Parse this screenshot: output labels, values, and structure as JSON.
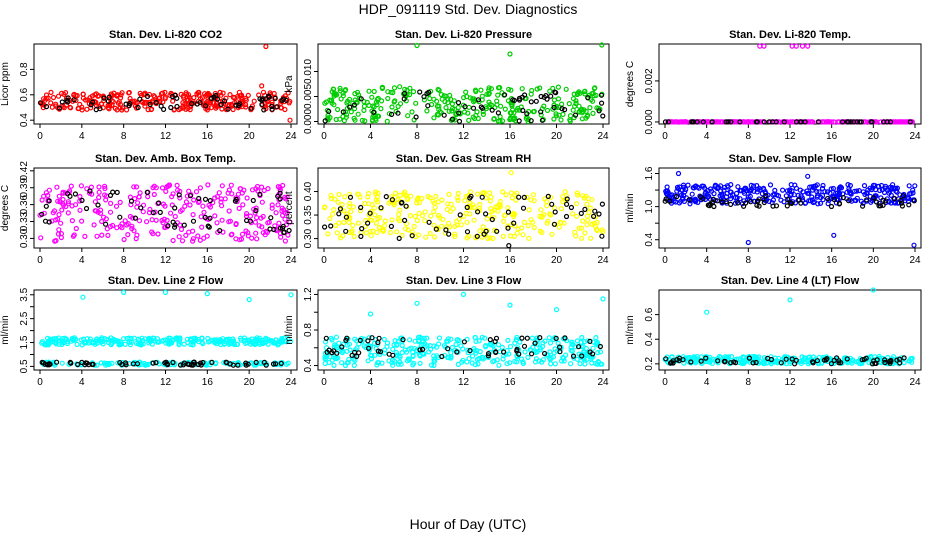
{
  "figure": {
    "title": "HDP_091119  Std. Dev. Diagnostics",
    "xlabel": "Hour of Day (UTC)"
  },
  "chart_data": [
    {
      "type": "scatter",
      "title": "Stan. Dev. Li-820 CO2",
      "ylabel": "Licor ppm",
      "xlim": [
        0,
        24
      ],
      "x_ticks": [
        0,
        4,
        8,
        12,
        16,
        20,
        24
      ],
      "ylim": [
        0.37,
        1.0
      ],
      "y_ticks": [
        0.4,
        0.6,
        0.8
      ],
      "y_tick_labels": [
        "0.4",
        "0.6",
        "0.8"
      ],
      "colors": {
        "main": "#ff0000",
        "secondary": "#000000"
      },
      "series": [
        {
          "color": "#ff0000",
          "band": [
            0.48,
            0.62
          ],
          "count": 300
        },
        {
          "color": "#000000",
          "band": [
            0.48,
            0.6
          ],
          "count": 60
        }
      ],
      "outliers": [
        {
          "x": 21.6,
          "y": 0.98,
          "color": "#ff0000"
        },
        {
          "x": 21.2,
          "y": 0.67,
          "color": "#ff0000"
        },
        {
          "x": 23.9,
          "y": 0.4,
          "color": "#ff0000"
        }
      ]
    },
    {
      "type": "scatter",
      "title": "Stan. Dev. Li-820 Pressure",
      "ylabel": "kPa",
      "xlim": [
        0,
        24
      ],
      "x_ticks": [
        0,
        4,
        8,
        12,
        16,
        20,
        24
      ],
      "ylim": [
        -0.0005,
        0.0155
      ],
      "y_ticks": [
        0,
        0.005,
        0.01
      ],
      "y_tick_labels": [
        "0.000",
        "0.005",
        "0.010"
      ],
      "colors": {
        "main": "#00cc00",
        "secondary": "#000000"
      },
      "series": [
        {
          "color": "#00cc00",
          "band": [
            0.0,
            0.007
          ],
          "count": 320
        },
        {
          "color": "#000000",
          "band": [
            0.0,
            0.0065
          ],
          "count": 60
        }
      ],
      "outliers": [
        {
          "x": 8.0,
          "y": 0.0152,
          "color": "#00cc00"
        },
        {
          "x": 16.0,
          "y": 0.0135,
          "color": "#00cc00"
        },
        {
          "x": 23.9,
          "y": 0.0153,
          "color": "#00cc00"
        }
      ]
    },
    {
      "type": "scatter",
      "title": "Stan. Dev. Li-820 Temp.",
      "ylabel": "degrees C",
      "xlim": [
        0,
        24
      ],
      "x_ticks": [
        0,
        4,
        8,
        12,
        16,
        20,
        24
      ],
      "ylim": [
        -0.0001,
        0.0038
      ],
      "y_ticks": [
        0,
        0.002
      ],
      "y_tick_labels": [
        "0.000",
        "0.002"
      ],
      "colors": {
        "main": "#ff00ff",
        "secondary": "#000000"
      },
      "series": [
        {
          "color": "#ff00ff",
          "band": [
            0.0,
            0.0
          ],
          "count": 240
        },
        {
          "color": "#000000",
          "band": [
            0.0,
            0.0
          ],
          "count": 40
        }
      ],
      "outliers": [
        {
          "x": 9.1,
          "y": 0.0037,
          "color": "#ff00ff"
        },
        {
          "x": 9.5,
          "y": 0.0037,
          "color": "#ff00ff"
        },
        {
          "x": 12.2,
          "y": 0.0037,
          "color": "#ff00ff"
        },
        {
          "x": 12.6,
          "y": 0.0037,
          "color": "#ff00ff"
        },
        {
          "x": 13.2,
          "y": 0.0037,
          "color": "#ff00ff"
        },
        {
          "x": 13.7,
          "y": 0.0037,
          "color": "#ff00ff"
        }
      ]
    },
    {
      "type": "scatter",
      "title": "Stan. Dev. Amb. Box Temp.",
      "ylabel": "degrees C",
      "xlim": [
        0,
        24
      ],
      "x_ticks": [
        0,
        4,
        8,
        12,
        16,
        20,
        24
      ],
      "ylim": [
        0.283,
        0.425
      ],
      "y_ticks": [
        0.3,
        0.33,
        0.36,
        0.39,
        0.42
      ],
      "y_tick_labels": [
        "0.30",
        "0.33",
        "0.36",
        "0.39",
        "0.42"
      ],
      "colors": {
        "main": "#ff00ff",
        "secondary": "#000000"
      },
      "series": [
        {
          "color": "#ff00ff",
          "band": [
            0.295,
            0.395
          ],
          "count": 300
        },
        {
          "color": "#000000",
          "band": [
            0.31,
            0.385
          ],
          "count": 60
        }
      ],
      "outliers": []
    },
    {
      "type": "scatter",
      "title": "Stan. Dev. Gas Stream RH",
      "ylabel": "percent",
      "xlim": [
        0,
        24
      ],
      "x_ticks": [
        0,
        4,
        8,
        12,
        16,
        20,
        24
      ],
      "ylim": [
        0.28,
        0.45
      ],
      "y_ticks": [
        0.3,
        0.35,
        0.4
      ],
      "y_tick_labels": [
        "0.30",
        "0.35",
        "0.40"
      ],
      "colors": {
        "main": "#ffff00",
        "secondary": "#000000"
      },
      "series": [
        {
          "color": "#ffff00",
          "band": [
            0.3,
            0.4
          ],
          "count": 320
        },
        {
          "color": "#000000",
          "band": [
            0.3,
            0.39
          ],
          "count": 60
        }
      ],
      "outliers": [
        {
          "x": 16.1,
          "y": 0.44,
          "color": "#ffff00"
        },
        {
          "x": 15.9,
          "y": 0.285,
          "color": "#000000"
        }
      ]
    },
    {
      "type": "scatter",
      "title": "Stan. Dev. Sample Flow",
      "ylabel": "ml/min",
      "xlim": [
        0,
        24
      ],
      "x_ticks": [
        0,
        4,
        8,
        12,
        16,
        20,
        24
      ],
      "ylim": [
        0.25,
        1.7
      ],
      "y_ticks": [
        0.4,
        0.7,
        1.0,
        1.3,
        1.6
      ],
      "y_tick_labels": [
        "0.4",
        "",
        "1.0",
        "",
        "1.6"
      ],
      "colors": {
        "main": "#0000ff",
        "secondary": "#000000"
      },
      "series": [
        {
          "color": "#0000ff",
          "band": [
            1.05,
            1.4
          ],
          "count": 340
        },
        {
          "color": "#000000",
          "band": [
            1.0,
            1.2
          ],
          "count": 60
        }
      ],
      "outliers": [
        {
          "x": 8.0,
          "y": 0.35,
          "color": "#0000ff"
        },
        {
          "x": 16.2,
          "y": 0.48,
          "color": "#0000ff"
        },
        {
          "x": 23.9,
          "y": 0.3,
          "color": "#0000ff"
        },
        {
          "x": 1.3,
          "y": 1.6,
          "color": "#0000ff"
        },
        {
          "x": 13.7,
          "y": 1.55,
          "color": "#0000ff"
        }
      ]
    },
    {
      "type": "scatter",
      "title": "Stan. Dev. Line 2 Flow",
      "ylabel": "ml/min",
      "xlim": [
        0,
        24
      ],
      "x_ticks": [
        0,
        4,
        8,
        12,
        16,
        20,
        24
      ],
      "ylim": [
        0.35,
        3.7
      ],
      "y_ticks": [
        0.5,
        1.0,
        1.5,
        2.0,
        2.5,
        3.0,
        3.5
      ],
      "y_tick_labels": [
        "0.5",
        "",
        "1.5",
        "",
        "2.5",
        "",
        "3.5"
      ],
      "colors": {
        "main": "#00ffff",
        "secondary": "#000000"
      },
      "series": [
        {
          "color": "#00ffff",
          "band": [
            1.4,
            1.7
          ],
          "count": 280
        },
        {
          "color": "#00ffff",
          "band": [
            0.55,
            0.68
          ],
          "count": 120
        },
        {
          "color": "#000000",
          "band": [
            0.55,
            0.68
          ],
          "count": 60
        }
      ],
      "outliers": [
        {
          "x": 4.1,
          "y": 3.4,
          "color": "#00ffff"
        },
        {
          "x": 8.0,
          "y": 3.6,
          "color": "#00ffff"
        },
        {
          "x": 12.0,
          "y": 3.6,
          "color": "#00ffff"
        },
        {
          "x": 16.0,
          "y": 3.55,
          "color": "#00ffff"
        },
        {
          "x": 20.0,
          "y": 3.3,
          "color": "#00ffff"
        },
        {
          "x": 24.0,
          "y": 3.5,
          "color": "#00ffff"
        }
      ]
    },
    {
      "type": "scatter",
      "title": "Stan. Dev. Line 3 Flow",
      "ylabel": "ml/min",
      "xlim": [
        0,
        24
      ],
      "x_ticks": [
        0,
        4,
        8,
        12,
        16,
        20,
        24
      ],
      "ylim": [
        0.35,
        1.25
      ],
      "y_ticks": [
        0.4,
        0.6,
        0.8,
        1.0,
        1.2
      ],
      "y_tick_labels": [
        "0.4",
        "",
        "0.8",
        "",
        "1.2"
      ],
      "colors": {
        "main": "#00ffff",
        "secondary": "#000000"
      },
      "series": [
        {
          "color": "#00ffff",
          "band": [
            0.4,
            0.72
          ],
          "count": 360
        },
        {
          "color": "#000000",
          "band": [
            0.5,
            0.72
          ],
          "count": 60
        }
      ],
      "outliers": [
        {
          "x": 4.0,
          "y": 0.98,
          "color": "#00ffff"
        },
        {
          "x": 8.0,
          "y": 1.1,
          "color": "#00ffff"
        },
        {
          "x": 12.0,
          "y": 1.2,
          "color": "#00ffff"
        },
        {
          "x": 16.0,
          "y": 1.08,
          "color": "#00ffff"
        },
        {
          "x": 20.0,
          "y": 1.03,
          "color": "#00ffff"
        },
        {
          "x": 24.0,
          "y": 1.15,
          "color": "#00ffff"
        }
      ]
    },
    {
      "type": "scatter",
      "title": "Stan. Dev. Line 4 (LT) Flow",
      "ylabel": "ml/min",
      "xlim": [
        0,
        24
      ],
      "x_ticks": [
        0,
        4,
        8,
        12,
        16,
        20,
        24
      ],
      "ylim": [
        0.15,
        0.8
      ],
      "y_ticks": [
        0.2,
        0.4,
        0.6
      ],
      "y_tick_labels": [
        "0.2",
        "0.4",
        "0.6"
      ],
      "colors": {
        "main": "#00ffff",
        "secondary": "#000000"
      },
      "series": [
        {
          "color": "#00ffff",
          "band": [
            0.2,
            0.26
          ],
          "count": 280
        },
        {
          "color": "#000000",
          "band": [
            0.2,
            0.25
          ],
          "count": 60
        }
      ],
      "outliers": [
        {
          "x": 4.0,
          "y": 0.62,
          "color": "#00ffff"
        },
        {
          "x": 12.0,
          "y": 0.72,
          "color": "#00ffff"
        },
        {
          "x": 20.0,
          "y": 0.8,
          "color": "#00ffff"
        }
      ]
    }
  ]
}
